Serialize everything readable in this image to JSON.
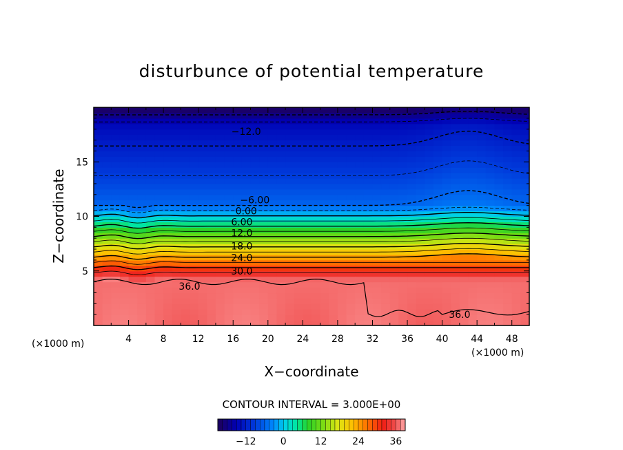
{
  "chart_data": {
    "type": "heatmap",
    "title": "disturbunce of potential temperature",
    "xlabel": "X−coordinate",
    "ylabel": "Z−coordinate",
    "x_unit": "(×1000 m)",
    "y_unit": "(×1000 m)",
    "xlim": [
      0,
      50
    ],
    "ylim": [
      0,
      20
    ],
    "x_ticks": [
      "4",
      "8",
      "12",
      "16",
      "20",
      "24",
      "28",
      "32",
      "36",
      "40",
      "44",
      "48"
    ],
    "y_ticks": [
      "5",
      "10",
      "15"
    ],
    "contour_interval_label": "CONTOUR INTERVAL = 3.000E+00",
    "contour_interval": 3,
    "colorbar": {
      "min": -21,
      "max": 39,
      "ticks": [
        "−12",
        "0",
        "12",
        "24",
        "36"
      ]
    },
    "contour_labels": [
      {
        "text": "−12.0",
        "x": 17.5,
        "z": 17.8
      },
      {
        "text": "−6.00",
        "x": 18.5,
        "z": 11.5
      },
      {
        "text": "0.00",
        "x": 17.5,
        "z": 10.5
      },
      {
        "text": "6.00",
        "x": 17.0,
        "z": 9.5
      },
      {
        "text": "12.0",
        "x": 17.0,
        "z": 8.5
      },
      {
        "text": "18.0",
        "x": 17.0,
        "z": 7.3
      },
      {
        "text": "24.0",
        "x": 17.0,
        "z": 6.2
      },
      {
        "text": "30.0",
        "x": 17.0,
        "z": 5.0
      },
      {
        "text": "36.0",
        "x": 11.0,
        "z": 3.6
      },
      {
        "text": "36.0",
        "x": 42.0,
        "z": 1.0
      }
    ]
  }
}
